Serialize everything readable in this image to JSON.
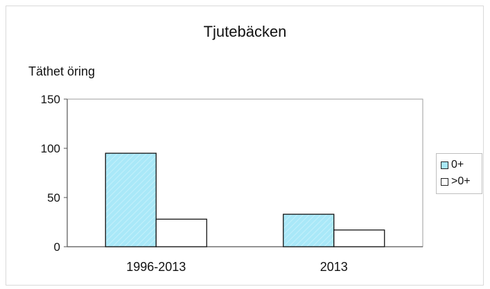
{
  "chart_data": {
    "type": "bar",
    "title": "Tjutebäcken",
    "ylabel": "Täthet öring",
    "xlabel": "",
    "categories": [
      "1996-2013",
      "2013"
    ],
    "series": [
      {
        "name": "0+",
        "values": [
          95,
          33
        ],
        "color": "#a9e8f8"
      },
      {
        "name": ">0+",
        "values": [
          28,
          17
        ],
        "color": "#ffffff"
      }
    ],
    "ylim": [
      0,
      150
    ],
    "yticks": [
      0,
      50,
      100,
      150
    ],
    "grid": false,
    "legend_position": "right"
  }
}
